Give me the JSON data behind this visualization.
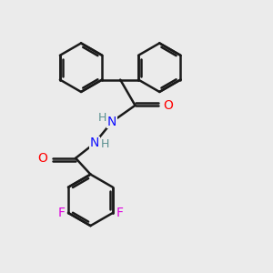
{
  "bg_color": "#ebebeb",
  "line_color": "#1a1a1a",
  "bond_width": 1.8,
  "atom_colors": {
    "O": "#ff0000",
    "N": "#1010ff",
    "F": "#dd00dd",
    "H_color": "#5a9090",
    "C": "#1a1a1a"
  },
  "font_size": 10,
  "r_ring": 0.9,
  "r_lower": 0.95
}
